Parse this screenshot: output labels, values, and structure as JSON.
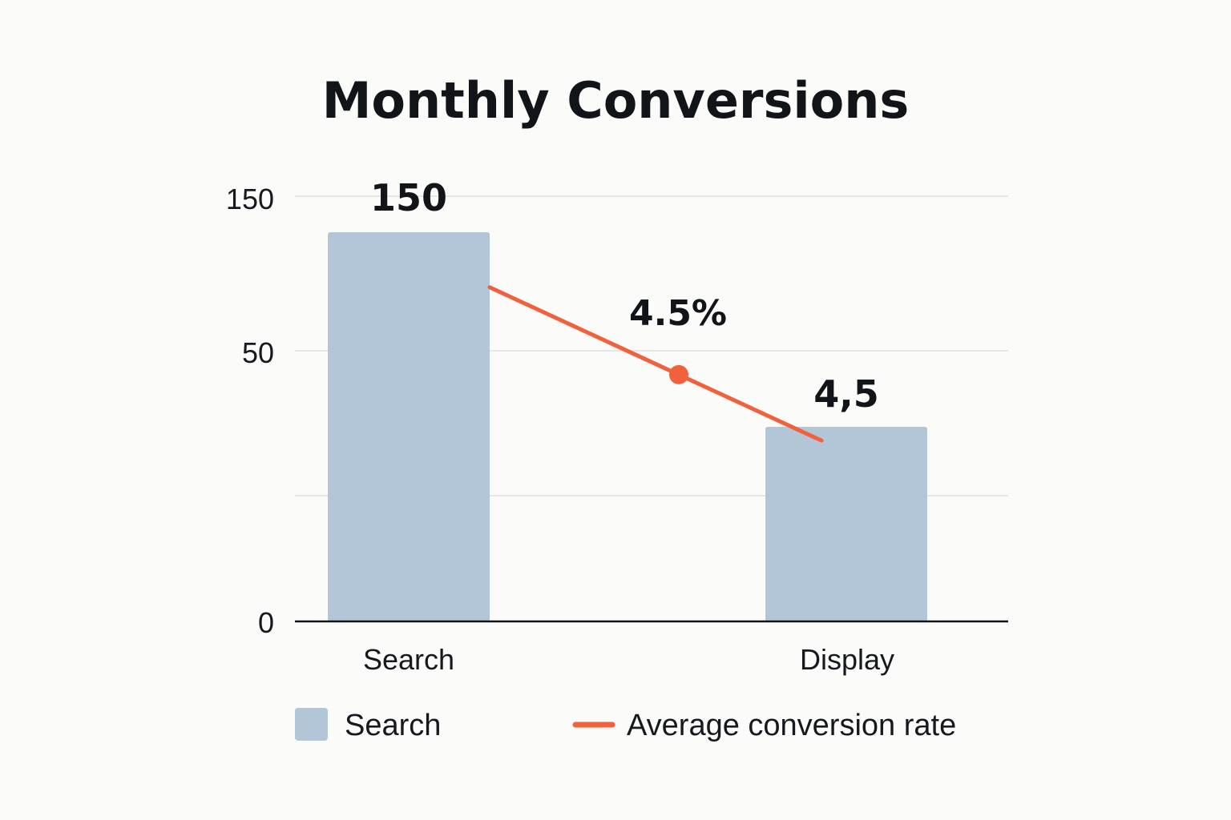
{
  "chart_data": {
    "type": "bar",
    "title": "Monthly Conversions",
    "xlabel": "",
    "ylabel": "",
    "categories": [
      "Search",
      "Display"
    ],
    "y_ticks": [
      "150",
      "50",
      "0"
    ],
    "series": [
      {
        "name": "Search",
        "type": "bar",
        "values": [
          120,
          60
        ],
        "labels": [
          "150",
          "4,5"
        ],
        "color": "#b3c6d8"
      },
      {
        "name": "Average conversion rate",
        "type": "line",
        "values": [
          105,
          57
        ],
        "point_label": "4.5%",
        "color": "#f0613c"
      }
    ],
    "grid": true,
    "legend_position": "bottom"
  },
  "colors": {
    "bar": "#b3c6d8",
    "line": "#f0613c",
    "grid": "#e6e6e6",
    "axis": "#111418",
    "text": "#111418",
    "background": "#fbfbfa"
  }
}
